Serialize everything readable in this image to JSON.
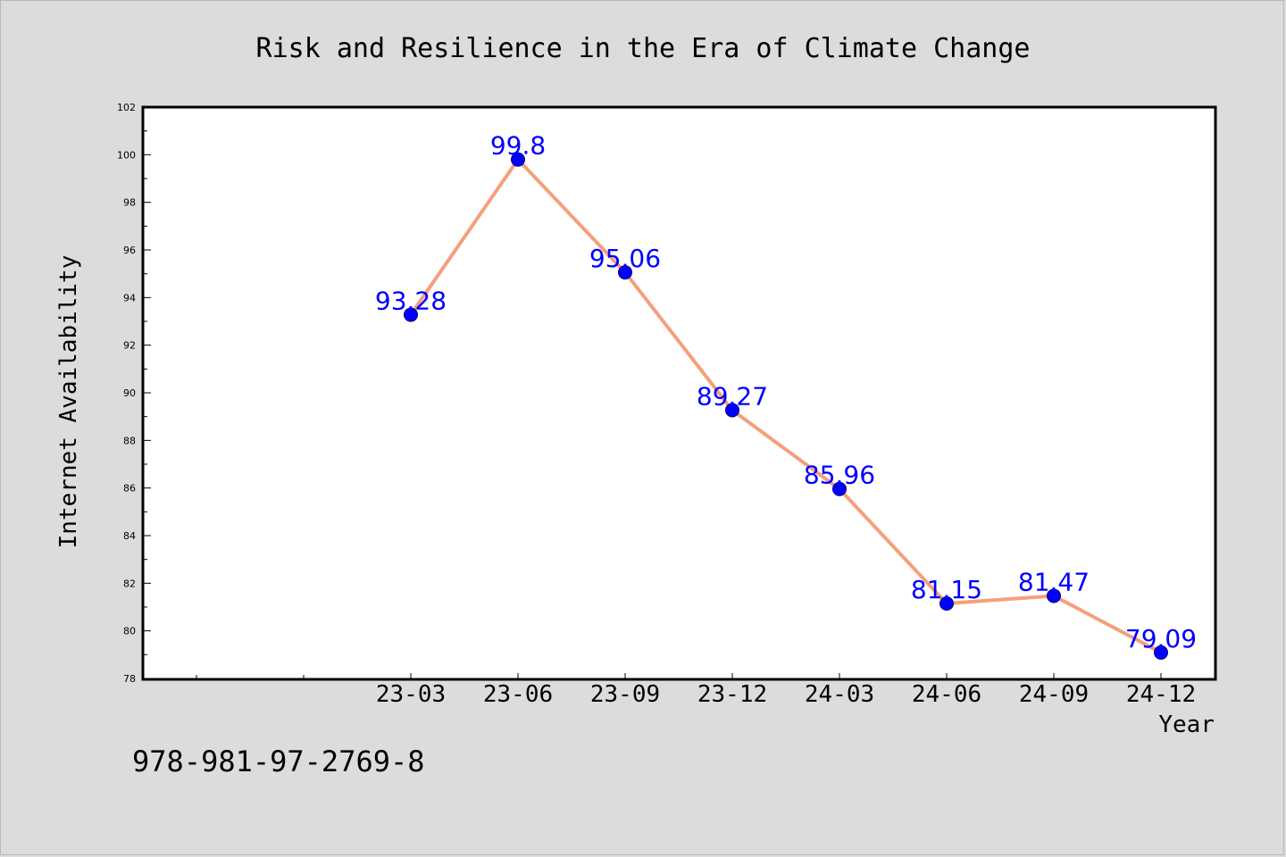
{
  "chart_data": {
    "type": "line",
    "title": "Risk and Resilience in the Era of Climate Change",
    "xlabel": "Year",
    "ylabel": "Internet Availability",
    "categories": [
      "23-03",
      "23-06",
      "23-09",
      "23-12",
      "24-03",
      "24-06",
      "24-09",
      "24-12"
    ],
    "series": [
      {
        "values": [
          93.28,
          99.8,
          95.06,
          89.27,
          85.96,
          81.15,
          81.47,
          79.09
        ],
        "labels": [
          "93.28",
          "99.8",
          "95.06",
          "89.27",
          "85.96",
          "81.15",
          "81.47",
          "79.09"
        ],
        "line_color": "#f4a07c",
        "marker_color": "#0000ff"
      }
    ],
    "ylim": [
      78,
      102
    ],
    "yticks": [
      "78",
      "80",
      "82",
      "84",
      "86",
      "88",
      "90",
      "92",
      "94",
      "96",
      "98",
      "100",
      "102"
    ],
    "grid": false,
    "legend": "none",
    "plot_background": "#ffffff",
    "figure_background": "#dcdcdc"
  },
  "footer": {
    "isbn": "978-981-97-2769-8"
  }
}
